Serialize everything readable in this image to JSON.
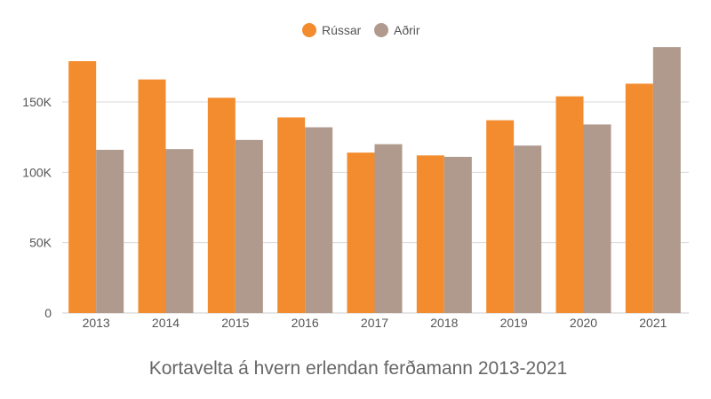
{
  "chart_data": {
    "type": "bar",
    "title": "Kortavelta á hvern erlendan ferðamann 2013-2021",
    "xlabel": "",
    "ylabel": "",
    "categories": [
      "2013",
      "2014",
      "2015",
      "2016",
      "2017",
      "2018",
      "2019",
      "2020",
      "2021"
    ],
    "series": [
      {
        "name": "Rússar",
        "color": "#f28c2e",
        "values": [
          179000,
          166000,
          153000,
          139000,
          114000,
          112000,
          137000,
          154000,
          163000
        ]
      },
      {
        "name": "Aðrir",
        "color": "#b09a8e",
        "values": [
          116000,
          116500,
          123000,
          132000,
          120000,
          111000,
          119000,
          134000,
          189000
        ]
      }
    ],
    "ylim": [
      0,
      190000
    ],
    "yticks": [
      0,
      50000,
      100000,
      150000
    ],
    "ytick_labels": [
      "0",
      "50K",
      "100K",
      "150K"
    ],
    "grid": true,
    "legend_position": "top-center"
  }
}
